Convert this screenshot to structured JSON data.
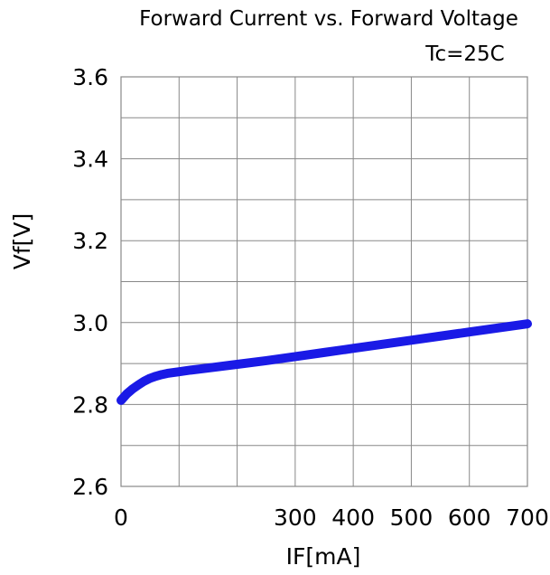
{
  "chart_data": {
    "type": "line",
    "title": "Forward Current vs. Forward Voltage",
    "subtitle": "Tc=25C",
    "xlabel": "IF[mA]",
    "ylabel": "Vf[V]",
    "x_ticks": [
      0,
      100,
      200,
      300,
      400,
      500,
      600,
      700
    ],
    "x_tick_labels": [
      "0",
      "",
      "",
      "300",
      "400",
      "500",
      "600",
      "700"
    ],
    "y_ticks": [
      2.6,
      2.7,
      2.8,
      2.9,
      3.0,
      3.1,
      3.2,
      3.3,
      3.4,
      3.5,
      3.6
    ],
    "y_tick_labels": [
      "2.6",
      "",
      "2.8",
      "",
      "3.0",
      "",
      "3.2",
      "",
      "3.4",
      "",
      "3.6"
    ],
    "xlim": [
      0,
      700
    ],
    "ylim": [
      2.6,
      3.6
    ],
    "grid": true,
    "series_color": "#1a1ae6",
    "series": [
      {
        "x": [
          0,
          10,
          20,
          30,
          40,
          50,
          60,
          70,
          80,
          100,
          120,
          150,
          200,
          250,
          300,
          350,
          400,
          450,
          500,
          550,
          600,
          650,
          700
        ],
        "y": [
          2.81,
          2.826,
          2.838,
          2.848,
          2.857,
          2.864,
          2.869,
          2.873,
          2.876,
          2.88,
          2.884,
          2.889,
          2.898,
          2.907,
          2.917,
          2.927,
          2.937,
          2.947,
          2.957,
          2.967,
          2.977,
          2.987,
          2.997
        ]
      }
    ]
  }
}
